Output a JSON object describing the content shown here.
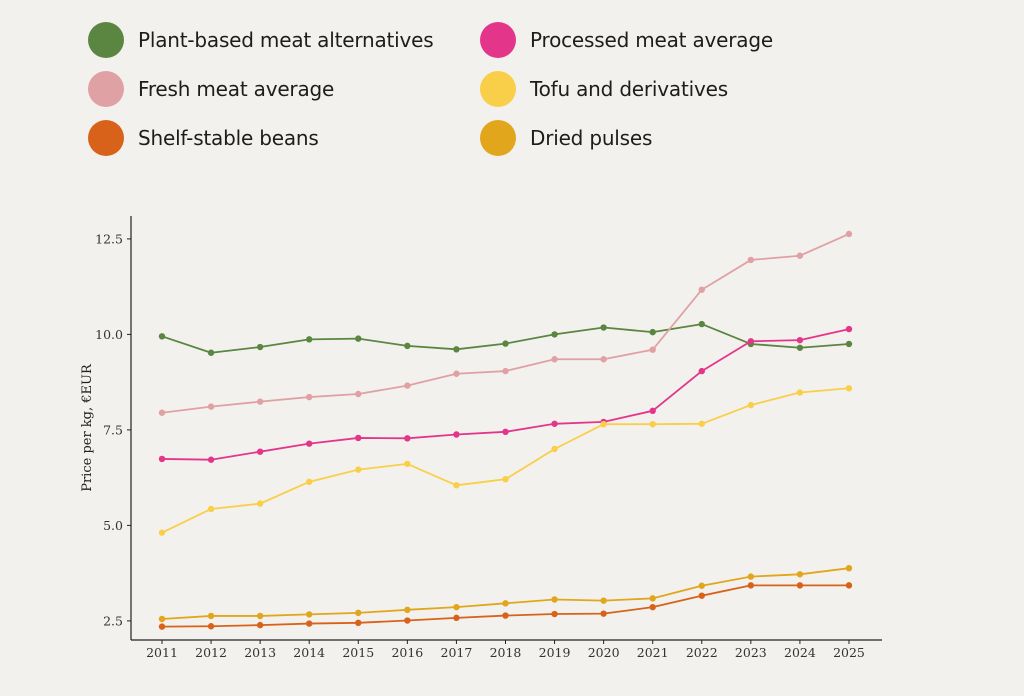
{
  "chart_data": {
    "type": "line",
    "title": "",
    "xlabel": "",
    "ylabel": "Price per kg, €EUR",
    "x": [
      2011,
      2012,
      2013,
      2014,
      2015,
      2016,
      2017,
      2018,
      2019,
      2020,
      2021,
      2022,
      2023,
      2024,
      2025
    ],
    "xticks": [
      "2011",
      "2012",
      "2013",
      "2014",
      "2015",
      "2016",
      "2017",
      "2018",
      "2019",
      "2020",
      "2021",
      "2022",
      "2023",
      "2024",
      "2025"
    ],
    "yticks": [
      "2.5",
      "5.0",
      "7.5",
      "10.0",
      "12.5"
    ],
    "ytick_values": [
      2.5,
      5.0,
      7.5,
      10.0,
      12.5
    ],
    "ylim": [
      2.0,
      13.1
    ],
    "grid": false,
    "legend_position": "top",
    "series": [
      {
        "name": "Plant-based meat alternatives",
        "color": "#5a8642",
        "values": [
          9.95,
          9.52,
          9.67,
          9.87,
          9.89,
          9.7,
          9.61,
          9.76,
          10.0,
          10.18,
          10.06,
          10.27,
          9.75,
          9.65,
          9.75
        ]
      },
      {
        "name": "Processed meat average",
        "color": "#e3368b",
        "values": [
          6.74,
          6.72,
          6.93,
          7.14,
          7.29,
          7.28,
          7.38,
          7.45,
          7.66,
          7.71,
          8.0,
          9.04,
          9.82,
          9.85,
          10.14
        ]
      },
      {
        "name": "Fresh meat average",
        "color": "#e0a1a4",
        "values": [
          7.95,
          8.11,
          8.24,
          8.36,
          8.44,
          8.66,
          8.97,
          9.04,
          9.35,
          9.35,
          9.6,
          11.17,
          11.95,
          12.06,
          12.63
        ]
      },
      {
        "name": "Tofu and derivatives",
        "color": "#f9cf4a",
        "values": [
          4.81,
          5.43,
          5.57,
          6.14,
          6.46,
          6.61,
          6.05,
          6.21,
          7.0,
          7.65,
          7.65,
          7.66,
          8.15,
          8.48,
          8.59
        ]
      },
      {
        "name": "Shelf-stable beans",
        "color": "#d9621b",
        "values": [
          2.35,
          2.36,
          2.39,
          2.43,
          2.45,
          2.51,
          2.58,
          2.64,
          2.68,
          2.69,
          2.86,
          3.16,
          3.43,
          3.43,
          3.43
        ]
      },
      {
        "name": "Dried pulses",
        "color": "#e1a61c",
        "values": [
          2.55,
          2.63,
          2.63,
          2.67,
          2.71,
          2.79,
          2.86,
          2.96,
          3.06,
          3.03,
          3.09,
          3.42,
          3.66,
          3.72,
          3.88
        ]
      }
    ]
  },
  "legend": {
    "items": [
      {
        "label": "Plant-based meat alternatives",
        "color": "#5a8642"
      },
      {
        "label": "Processed meat average",
        "color": "#e3368b"
      },
      {
        "label": "Fresh meat average",
        "color": "#e0a1a4"
      },
      {
        "label": "Tofu and derivatives",
        "color": "#f9cf4a"
      },
      {
        "label": "Shelf-stable beans",
        "color": "#d9621b"
      },
      {
        "label": "Dried pulses",
        "color": "#e1a61c"
      }
    ]
  }
}
